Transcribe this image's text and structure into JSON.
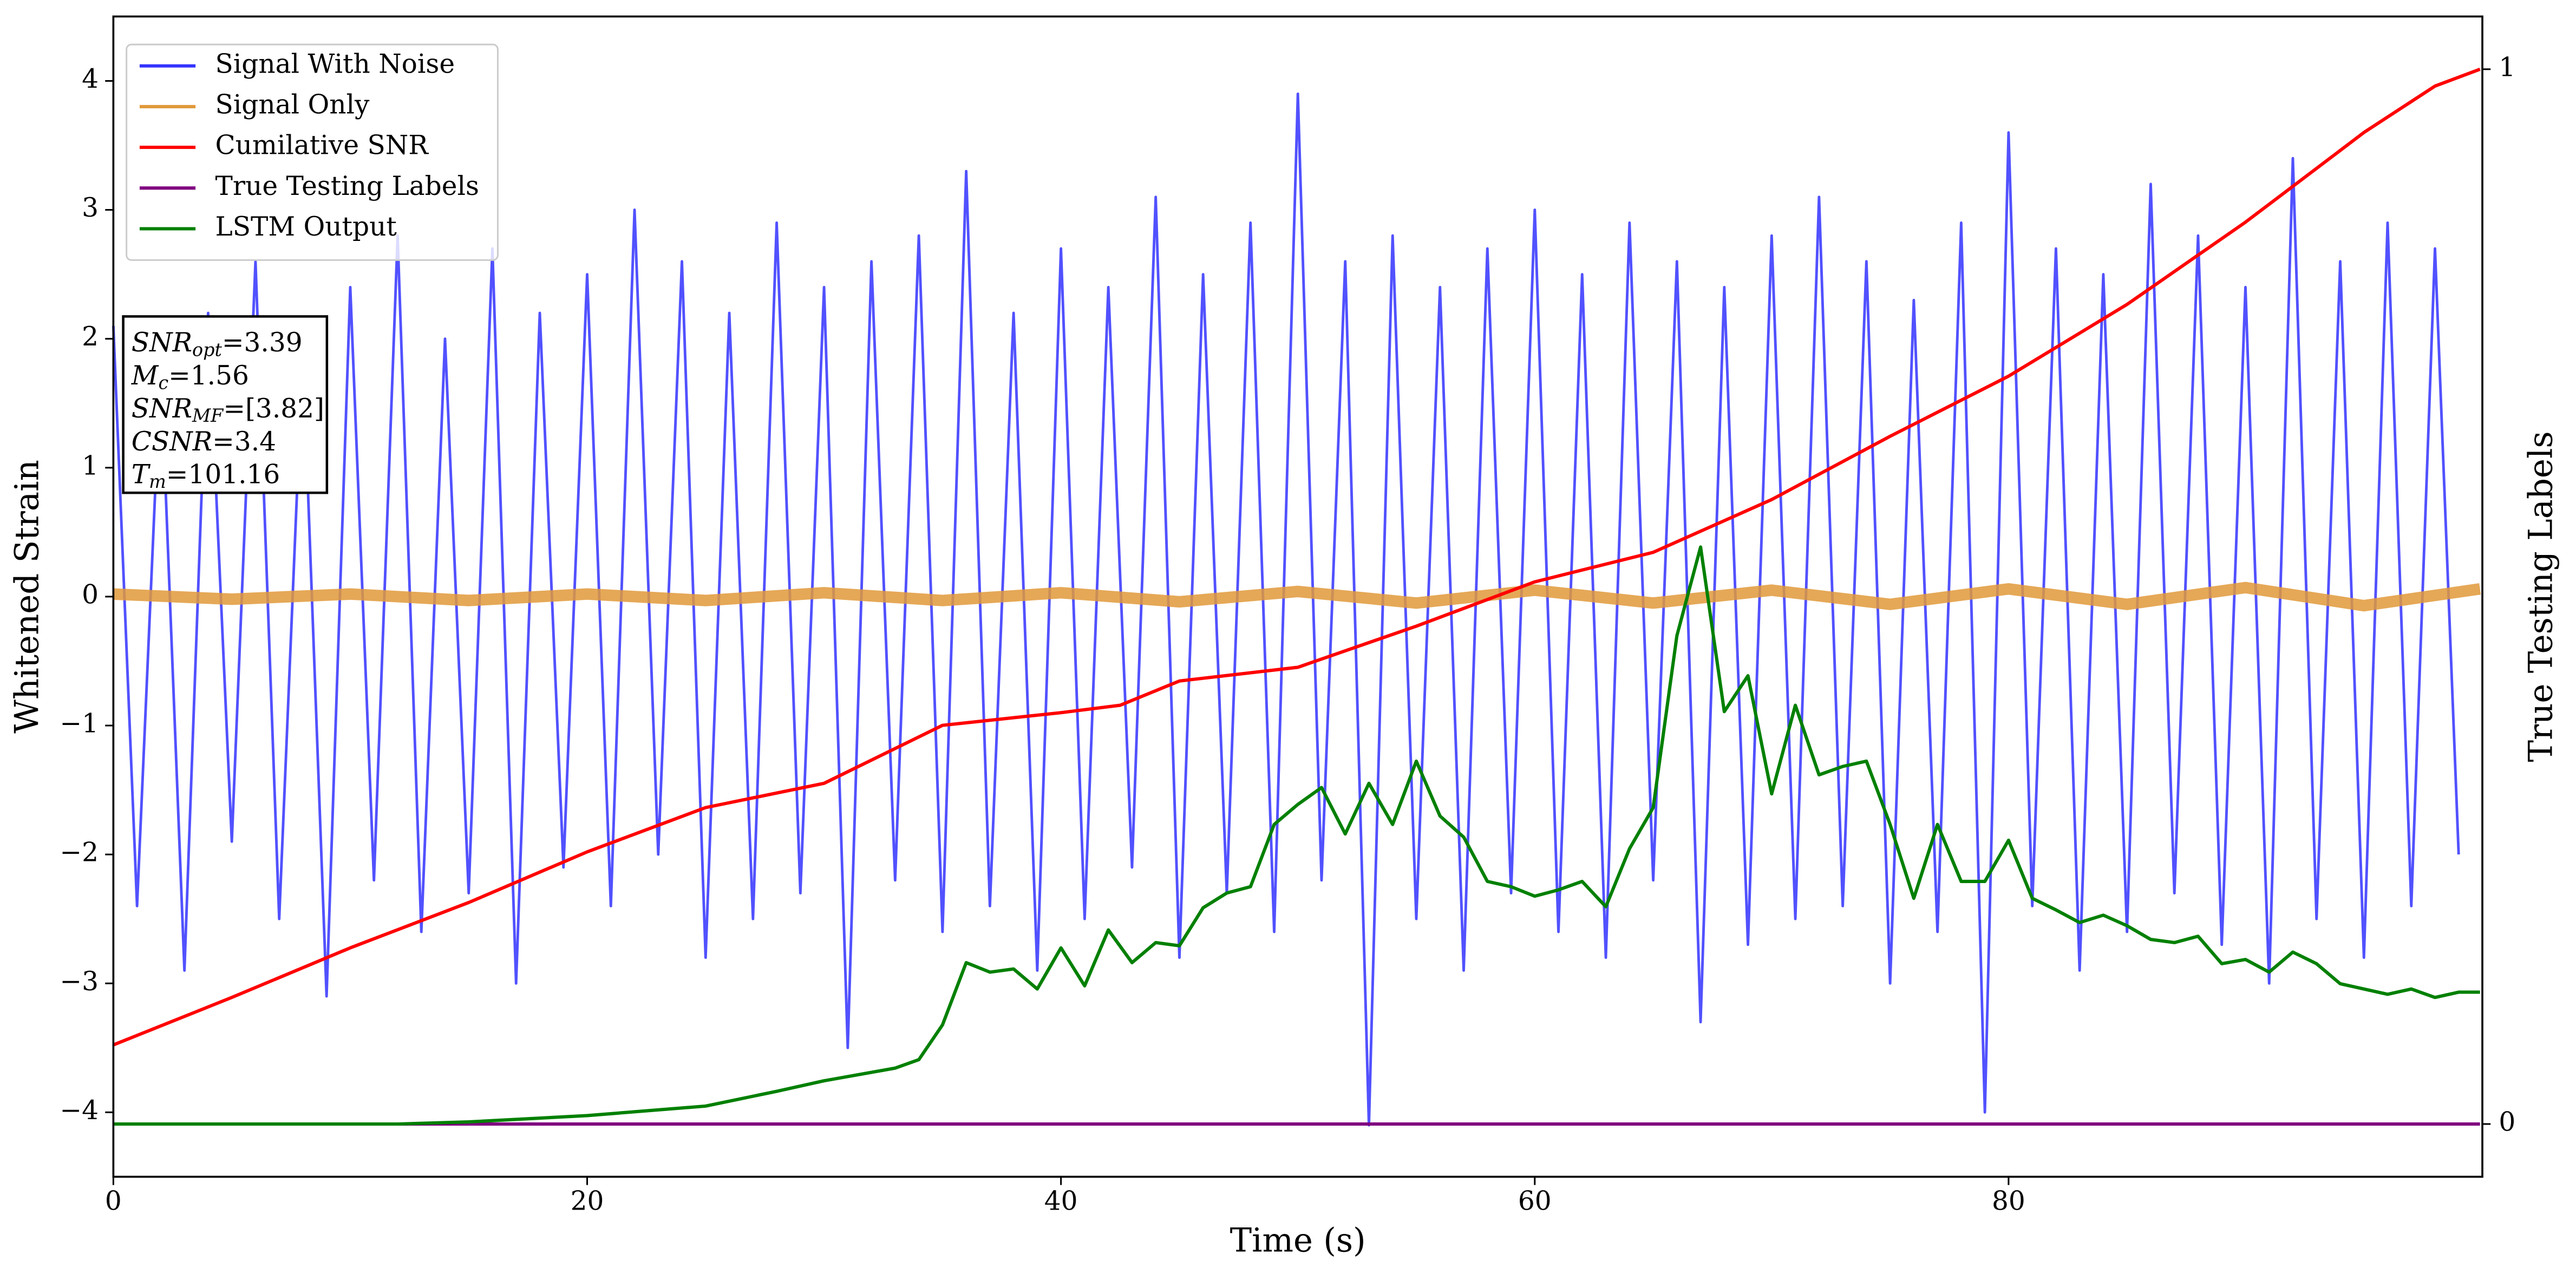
{
  "chart_data": {
    "type": "line",
    "xlabel": "Time (s)",
    "ylabel": "Whitened Strain",
    "y2label": "True Testing Labels",
    "xlim": [
      0,
      100
    ],
    "ylim": [
      -4.5,
      4.5
    ],
    "y2lim": [
      -0.05,
      1.05
    ],
    "xticks": [
      0,
      20,
      40,
      60,
      80
    ],
    "yticks": [
      {
        "value": -4,
        "label": "−4"
      },
      {
        "value": -3,
        "label": "−3"
      },
      {
        "value": -2,
        "label": "−2"
      },
      {
        "value": -1,
        "label": "−1"
      },
      0,
      1,
      2,
      3,
      4
    ],
    "y2ticks": [
      0,
      1
    ],
    "legend": "upper left",
    "series": [
      {
        "name": "Signal With Noise",
        "color": "#3333ff",
        "axis": "y",
        "x": [
          0,
          1,
          2,
          3,
          4,
          5,
          6,
          7,
          8,
          9,
          10,
          11,
          12,
          13,
          14,
          15,
          16,
          17,
          18,
          19,
          20,
          21,
          22,
          23,
          24,
          25,
          26,
          27,
          28,
          29,
          30,
          31,
          32,
          33,
          34,
          35,
          36,
          37,
          38,
          39,
          40,
          41,
          42,
          43,
          44,
          45,
          46,
          47,
          48,
          49,
          50,
          51,
          52,
          53,
          54,
          55,
          56,
          57,
          58,
          59,
          60,
          61,
          62,
          63,
          64,
          65,
          66,
          67,
          68,
          69,
          70,
          71,
          72,
          73,
          74,
          75,
          76,
          77,
          78,
          79,
          80,
          81,
          82,
          83,
          84,
          85,
          86,
          87,
          88,
          89,
          90,
          91,
          92,
          93,
          94,
          95,
          96,
          97,
          98,
          99
        ],
        "values": [
          2.1,
          -2.4,
          1.8,
          -2.9,
          2.2,
          -1.9,
          2.6,
          -2.5,
          1.9,
          -3.1,
          2.4,
          -2.2,
          2.8,
          -2.6,
          2.0,
          -2.3,
          2.7,
          -3.0,
          2.2,
          -2.1,
          2.5,
          -2.4,
          3.0,
          -2.0,
          2.6,
          -2.8,
          2.2,
          -2.5,
          2.9,
          -2.3,
          2.4,
          -3.5,
          2.6,
          -2.2,
          2.8,
          -2.6,
          3.3,
          -2.4,
          2.2,
          -2.9,
          2.7,
          -2.5,
          2.4,
          -2.1,
          3.1,
          -2.8,
          2.5,
          -2.3,
          2.9,
          -2.6,
          3.9,
          -2.2,
          2.6,
          -4.1,
          2.8,
          -2.5,
          2.4,
          -2.9,
          2.7,
          -2.3,
          3.0,
          -2.6,
          2.5,
          -2.8,
          2.9,
          -2.2,
          2.6,
          -3.3,
          2.4,
          -2.7,
          2.8,
          -2.5,
          3.1,
          -2.4,
          2.6,
          -3.0,
          2.3,
          -2.6,
          2.9,
          -4.0,
          3.6,
          -2.4,
          2.7,
          -2.9,
          2.5,
          -2.6,
          3.2,
          -2.3,
          2.8,
          -2.7,
          2.4,
          -3.0,
          3.4,
          -2.5,
          2.6,
          -2.8,
          2.9,
          -2.4,
          2.7,
          -2.0
        ]
      },
      {
        "name": "Signal Only",
        "color": "#e0993a",
        "axis": "y",
        "x": [
          0,
          5,
          10,
          15,
          20,
          25,
          30,
          35,
          40,
          45,
          50,
          55,
          60,
          65,
          70,
          75,
          80,
          85,
          90,
          95,
          99.9
        ],
        "values": [
          0.02,
          -0.02,
          0.02,
          -0.03,
          0.02,
          -0.03,
          0.03,
          -0.03,
          0.03,
          -0.04,
          0.04,
          -0.05,
          0.05,
          -0.05,
          0.05,
          -0.06,
          0.06,
          -0.06,
          0.07,
          -0.07,
          0.06
        ]
      },
      {
        "name": "Cumilative SNR",
        "color": "red",
        "axis": "y2",
        "x": [
          0,
          5,
          10,
          15,
          20,
          25,
          30,
          35,
          40,
          42.5,
          45,
          50,
          55,
          60,
          65,
          70,
          75,
          80,
          85,
          90,
          95,
          98,
          99.9
        ],
        "values": [
          0.075,
          0.12,
          0.167,
          0.21,
          0.258,
          0.3,
          0.323,
          0.378,
          0.39,
          0.397,
          0.42,
          0.433,
          0.472,
          0.514,
          0.542,
          0.592,
          0.652,
          0.709,
          0.777,
          0.855,
          0.94,
          0.984,
          1.0
        ]
      },
      {
        "name": "True Testing Labels",
        "color": "purple",
        "axis": "y2",
        "x": [
          0,
          99.9
        ],
        "values": [
          0,
          0
        ]
      },
      {
        "name": "LSTM Output",
        "color": "green",
        "axis": "y2",
        "x": [
          0,
          12,
          15,
          20,
          25,
          28,
          30,
          33,
          34,
          35,
          36,
          37,
          38,
          39,
          40,
          41,
          42,
          43,
          44,
          45,
          46,
          47,
          48,
          49,
          50,
          51,
          52,
          53,
          54,
          55,
          56,
          57,
          58,
          59,
          60,
          61,
          62,
          63,
          64,
          65,
          66,
          67,
          68,
          69,
          70,
          71,
          72,
          73,
          74,
          75,
          76,
          77,
          78,
          79,
          80,
          81,
          82,
          83,
          84,
          85,
          86,
          87,
          88,
          89,
          90,
          91,
          92,
          93,
          94,
          95,
          96,
          97,
          98,
          99,
          99.9
        ],
        "values": [
          0,
          0,
          0.002,
          0.008,
          0.017,
          0.031,
          0.041,
          0.053,
          0.061,
          0.094,
          0.153,
          0.144,
          0.147,
          0.128,
          0.167,
          0.131,
          0.184,
          0.153,
          0.172,
          0.169,
          0.205,
          0.219,
          0.225,
          0.284,
          0.303,
          0.319,
          0.275,
          0.323,
          0.284,
          0.344,
          0.292,
          0.272,
          0.23,
          0.225,
          0.216,
          0.222,
          0.23,
          0.206,
          0.261,
          0.3,
          0.463,
          0.547,
          0.391,
          0.425,
          0.313,
          0.397,
          0.331,
          0.339,
          0.344,
          0.284,
          0.214,
          0.284,
          0.23,
          0.23,
          0.269,
          0.214,
          0.203,
          0.191,
          0.198,
          0.188,
          0.175,
          0.172,
          0.178,
          0.152,
          0.156,
          0.144,
          0.163,
          0.152,
          0.133,
          0.128,
          0.123,
          0.128,
          0.12,
          0.125,
          0.125
        ]
      }
    ],
    "annotations": [
      {
        "label": "SNR",
        "subscript": "opt",
        "text": "=3.39"
      },
      {
        "label": "M",
        "subscript": "c",
        "text": "=1.56"
      },
      {
        "label": "SNR",
        "subscript": "MF",
        "text": "=[3.82]"
      },
      {
        "label": "CSNR",
        "text": "=3.4"
      },
      {
        "label": "T",
        "subscript": "m",
        "text": "=101.16"
      }
    ]
  }
}
